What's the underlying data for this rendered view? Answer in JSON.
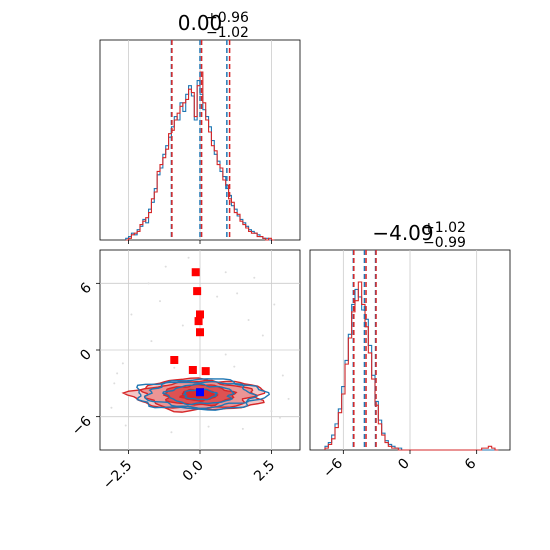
{
  "figure": {
    "colors": {
      "blue": "#1f77b4",
      "red": "#d62728",
      "marker_blue": "#0000ff",
      "marker_red": "#ff0000"
    }
  },
  "chart_data": [
    {
      "type": "histogram",
      "panel": "top-left",
      "title": "0.00^{+0.96}_{-1.02}",
      "title_main": "0.00",
      "title_sup": "+0.96",
      "title_sub": "−1.02",
      "xlim": [
        -3.5,
        3.5
      ],
      "grid": true,
      "bin_centers": [
        -2.55,
        -2.45,
        -2.35,
        -2.25,
        -2.15,
        -2.05,
        -1.95,
        -1.85,
        -1.75,
        -1.65,
        -1.55,
        -1.45,
        -1.35,
        -1.25,
        -1.15,
        -1.05,
        -0.95,
        -0.85,
        -0.75,
        -0.65,
        -0.55,
        -0.45,
        -0.35,
        -0.25,
        -0.15,
        -0.05,
        0.05,
        0.15,
        0.25,
        0.35,
        0.45,
        0.55,
        0.65,
        0.75,
        0.85,
        0.95,
        1.05,
        1.15,
        1.25,
        1.35,
        1.45,
        1.55,
        1.65,
        1.75,
        1.85,
        1.95,
        2.05,
        2.15,
        2.25,
        2.35,
        2.45,
        2.55
      ],
      "series": [
        {
          "name": "",
          "color": "#1f77b4",
          "values": [
            1,
            2,
            4,
            3,
            6,
            8,
            12,
            10,
            18,
            22,
            30,
            38,
            42,
            50,
            55,
            60,
            66,
            72,
            70,
            80,
            75,
            85,
            90,
            84,
            70,
            93,
            85,
            76,
            72,
            66,
            58,
            50,
            46,
            40,
            37,
            30,
            26,
            20,
            18,
            14,
            12,
            10,
            8,
            6,
            5,
            4,
            3,
            2,
            1,
            1,
            0,
            0
          ],
          "quantile_lines": [
            -1.0,
            0.0,
            0.94
          ]
        },
        {
          "name": "",
          "color": "#d62728",
          "values": [
            0,
            1,
            3,
            4,
            5,
            9,
            11,
            13,
            16,
            24,
            28,
            40,
            44,
            48,
            53,
            62,
            64,
            70,
            74,
            78,
            80,
            82,
            88,
            86,
            72,
            90,
            98,
            80,
            70,
            63,
            55,
            52,
            44,
            42,
            35,
            32,
            24,
            22,
            16,
            15,
            11,
            9,
            7,
            5,
            4,
            4,
            2,
            2,
            1,
            0,
            1,
            0
          ],
          "quantile_lines": [
            -1.04,
            0.0,
            0.98
          ]
        }
      ],
      "ticks_x": []
    },
    {
      "type": "contour",
      "panel": "bottom-left",
      "xlim": [
        -3.5,
        3.5
      ],
      "ylim": [
        -9,
        9
      ],
      "x_ticks": [
        "−2.5",
        "0.0",
        "2.5"
      ],
      "x_tick_values": [
        -2.5,
        0.0,
        2.5
      ],
      "y_ticks": [
        "−6",
        "0",
        "6"
      ],
      "y_tick_values": [
        -6,
        0,
        6
      ],
      "grid": true,
      "contours": [
        {
          "color": "#1f77b4",
          "center": [
            0.0,
            -4.0
          ],
          "sigmas": [
            [
              0.55,
              0.45
            ],
            [
              1.15,
              0.85
            ],
            [
              1.85,
              1.15
            ],
            [
              2.25,
              1.35
            ]
          ]
        },
        {
          "color": "#d62728",
          "center": [
            -0.05,
            -4.05
          ],
          "sigmas": [
            [
              0.6,
              0.5
            ],
            [
              1.2,
              0.9
            ],
            [
              1.9,
              1.2
            ],
            [
              2.3,
              1.4
            ]
          ]
        }
      ],
      "markers_red": [
        [
          -0.15,
          7.0
        ],
        [
          -0.1,
          5.3
        ],
        [
          0.0,
          3.2
        ],
        [
          -0.05,
          2.6
        ],
        [
          0.0,
          1.6
        ],
        [
          -0.9,
          -0.9
        ],
        [
          -0.25,
          -1.8
        ],
        [
          0.2,
          -1.9
        ],
        [
          0.0,
          -3.8
        ]
      ],
      "markers_blue": [
        [
          0.0,
          -3.8
        ]
      ]
    },
    {
      "type": "histogram",
      "panel": "bottom-right",
      "title": "−4.09^{+1.02}_{-0.99}",
      "title_main": "−4.09",
      "title_sup": "+1.02",
      "title_sub": "−0.99",
      "xlim": [
        -9,
        9
      ],
      "x_ticks": [
        "−6",
        "0",
        "6"
      ],
      "x_tick_values": [
        -6,
        0,
        6
      ],
      "grid": true,
      "bin_centers": [
        -7.5,
        -7.2,
        -6.9,
        -6.6,
        -6.3,
        -6.0,
        -5.7,
        -5.4,
        -5.1,
        -4.8,
        -4.5,
        -4.2,
        -3.9,
        -3.6,
        -3.3,
        -3.0,
        -2.7,
        -2.4,
        -2.1,
        -1.8,
        -1.5,
        -1.2,
        -0.9,
        -0.6,
        -0.3,
        0.0,
        0.3,
        0.6,
        0.9,
        1.2,
        1.5,
        1.8,
        2.1,
        2.4,
        2.7,
        3.0,
        3.3,
        3.6,
        3.9,
        4.2,
        4.5,
        4.8,
        5.1,
        5.4,
        5.7,
        6.0,
        6.3,
        6.6,
        6.9,
        7.2,
        7.5,
        7.8
      ],
      "series": [
        {
          "name": "",
          "color": "#1f77b4",
          "values": [
            2,
            4,
            8,
            14,
            22,
            34,
            48,
            62,
            78,
            86,
            82,
            75,
            70,
            56,
            40,
            26,
            16,
            9,
            5,
            3,
            2,
            1,
            1,
            0,
            0,
            0,
            0,
            0,
            0,
            0,
            0,
            0,
            0,
            0,
            0,
            0,
            0,
            0,
            0,
            0,
            0,
            0,
            0,
            0,
            0,
            0,
            0,
            0,
            0,
            0,
            0,
            0
          ],
          "quantile_lines": [
            -5.1,
            -4.1,
            -3.1
          ]
        },
        {
          "name": "",
          "color": "#d62728",
          "values": [
            1,
            3,
            6,
            12,
            20,
            30,
            46,
            60,
            74,
            80,
            90,
            78,
            66,
            52,
            38,
            24,
            14,
            8,
            4,
            2,
            1,
            1,
            0,
            0,
            0,
            0,
            0,
            0,
            0,
            0,
            0,
            0,
            0,
            0,
            0,
            0,
            0,
            0,
            0,
            0,
            0,
            0,
            0,
            0,
            0,
            0,
            0,
            1,
            1,
            2,
            1,
            0
          ],
          "quantile_lines": [
            -5.2,
            -4.1,
            -3.2
          ]
        }
      ]
    }
  ]
}
